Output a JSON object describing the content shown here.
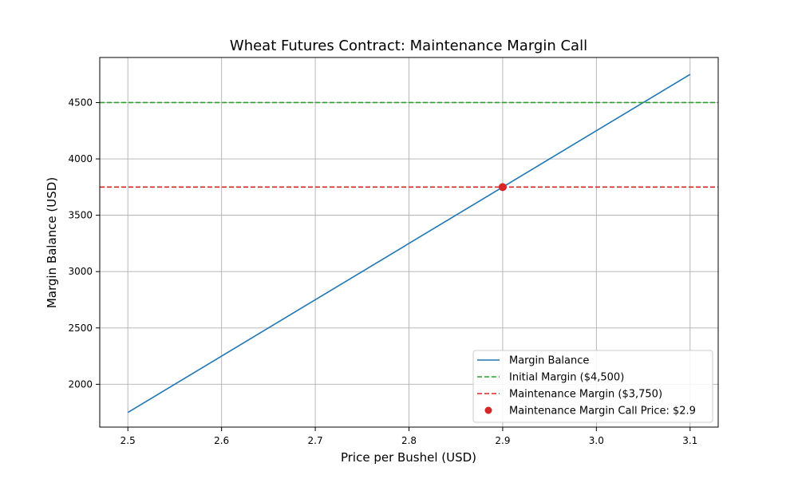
{
  "chart_data": {
    "type": "line",
    "title": "Wheat Futures Contract: Maintenance Margin Call",
    "xlabel": "Price per Bushel (USD)",
    "ylabel": "Margin Balance (USD)",
    "xlim": [
      2.47,
      3.13
    ],
    "ylim": [
      1620,
      4900
    ],
    "xticks": [
      2.5,
      2.6,
      2.7,
      2.8,
      2.9,
      3.0,
      3.1
    ],
    "xtick_labels": [
      "2.5",
      "2.6",
      "2.7",
      "2.8",
      "2.9",
      "3.0",
      "3.1"
    ],
    "yticks": [
      2000,
      2500,
      3000,
      3500,
      4000,
      4500
    ],
    "ytick_labels": [
      "2000",
      "2500",
      "3000",
      "3500",
      "4000",
      "4500"
    ],
    "grid": true,
    "legend_position": "lower-right",
    "series": [
      {
        "name": "Margin Balance",
        "kind": "line",
        "style": "solid",
        "color": "#1f77b4",
        "x": [
          2.5,
          3.1
        ],
        "y": [
          1750,
          4750
        ]
      },
      {
        "name": "Initial Margin ($4,500)",
        "kind": "hline",
        "style": "dashed",
        "color": "#2ca02c",
        "y": 4500
      },
      {
        "name": "Maintenance Margin ($3,750)",
        "kind": "hline",
        "style": "dashed",
        "color": "#d62728",
        "y": 3750
      },
      {
        "name": "Maintenance Margin Call Price: $2.9",
        "kind": "point",
        "color": "#d62728",
        "x": 2.9,
        "y": 3750
      }
    ]
  }
}
